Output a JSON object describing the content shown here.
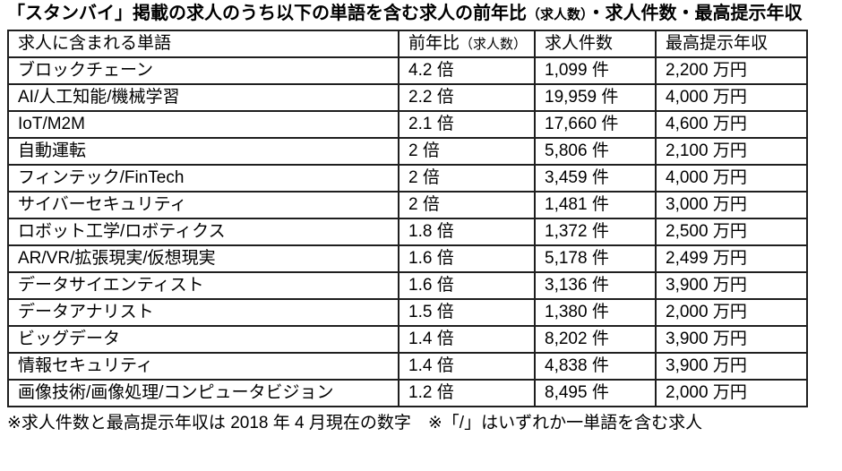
{
  "title": {
    "part1": "「スタンバイ」掲載の求人のうち以下の単語を含む求人の前年比",
    "part2": "（求人数）",
    "part3": "・求人件数・最高提示年収"
  },
  "table": {
    "headers": {
      "word": "求人に含まれる単語",
      "yoy_main": "前年比",
      "yoy_sub": "（求人数）",
      "count": "求人件数",
      "salary": "最高提示年収"
    },
    "rows": [
      {
        "word": "ブロックチェーン",
        "yoy": "4.2 倍",
        "count": "1,099 件",
        "salary": "2,200 万円"
      },
      {
        "word": "AI/人工知能/機械学習",
        "yoy": "2.2 倍",
        "count": "19,959 件",
        "salary": "4,000 万円"
      },
      {
        "word": "IoT/M2M",
        "yoy": "2.1 倍",
        "count": "17,660 件",
        "salary": "4,600 万円"
      },
      {
        "word": "自動運転",
        "yoy": "2 倍",
        "count": "5,806 件",
        "salary": "2,100 万円"
      },
      {
        "word": "フィンテック/FinTech",
        "yoy": "2 倍",
        "count": "3,459 件",
        "salary": "4,000 万円"
      },
      {
        "word": "サイバーセキュリティ",
        "yoy": "2 倍",
        "count": "1,481 件",
        "salary": "3,000 万円"
      },
      {
        "word": "ロボット工学/ロボティクス",
        "yoy": "1.8 倍",
        "count": "1,372 件",
        "salary": "2,500 万円"
      },
      {
        "word": "AR/VR/拡張現実/仮想現実",
        "yoy": "1.6 倍",
        "count": "5,178 件",
        "salary": "2,499 万円"
      },
      {
        "word": "データサイエンティスト",
        "yoy": "1.6 倍",
        "count": "3,136 件",
        "salary": "3,900 万円"
      },
      {
        "word": "データアナリスト",
        "yoy": "1.5 倍",
        "count": "1,380 件",
        "salary": "2,000 万円"
      },
      {
        "word": "ビッグデータ",
        "yoy": "1.4 倍",
        "count": "8,202 件",
        "salary": "3,900 万円"
      },
      {
        "word": "情報セキュリティ",
        "yoy": "1.4 倍",
        "count": "4,838 件",
        "salary": "3,900 万円"
      },
      {
        "word": "画像技術/画像処理/コンピュータビジョン",
        "yoy": "1.2 倍",
        "count": "8,495 件",
        "salary": "2,000 万円"
      }
    ]
  },
  "footnote": "※求人件数と最高提示年収は 2018 年 4 月現在の数字　※「/」はいずれか一単語を含む求人",
  "colors": {
    "background": "#ffffff",
    "text": "#000000",
    "border": "#1f1f1f"
  }
}
